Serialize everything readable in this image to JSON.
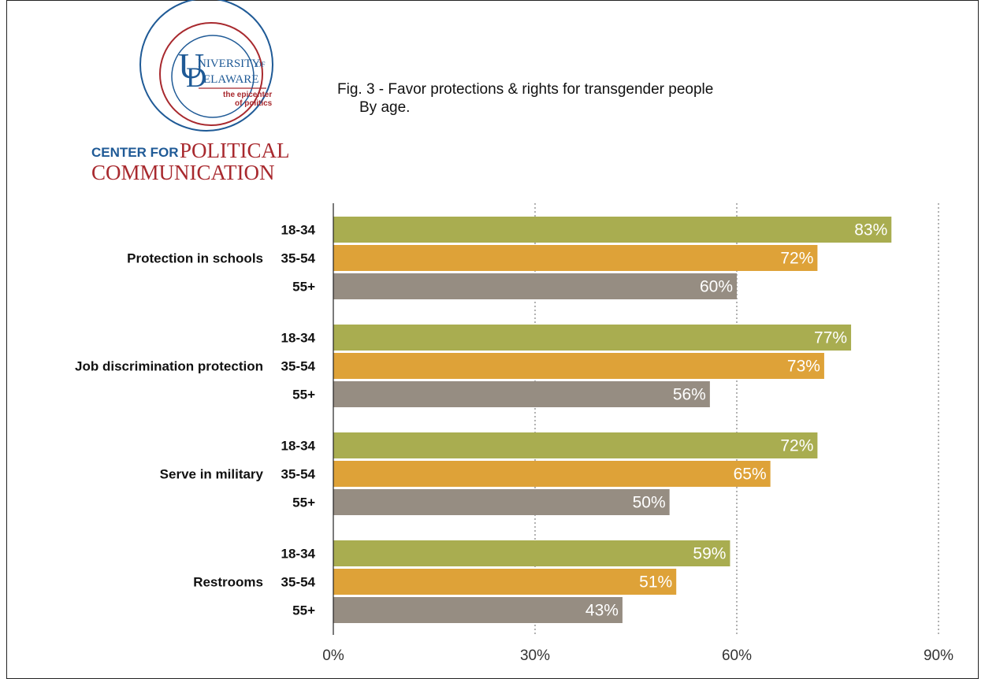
{
  "logo": {
    "university_line1": "NIVERSITY",
    "university_of": "OF",
    "university_line2": "ELAWARE",
    "tagline_line1": "the epicenter",
    "tagline_line2": "of politics",
    "center_for": "CENTER FOR",
    "political": "POLITICAL",
    "communication": "COMMUNICATION",
    "colors": {
      "blue": "#1f5a96",
      "red": "#a8292e"
    }
  },
  "title": {
    "line1": "Fig. 3 - Favor protections & rights for transgender people",
    "line2": "By age."
  },
  "chart_data": {
    "type": "bar",
    "orientation": "horizontal",
    "title": "Fig. 3 - Favor protections & rights for transgender people By age.",
    "xlim": [
      0,
      90
    ],
    "x_ticks": [
      "0%",
      "30%",
      "60%",
      "90%"
    ],
    "x_tick_values": [
      0,
      30,
      60,
      90
    ],
    "grid": "vertical dotted",
    "age_groups": [
      "18-34",
      "35-54",
      "55+"
    ],
    "series_colors": {
      "18-34": "#a9ad50",
      "35-54": "#dea238",
      "55+": "#968d82"
    },
    "groups": [
      {
        "category": "Protection in schools",
        "values": [
          83,
          72,
          60
        ],
        "labels": [
          "83%",
          "72%",
          "60%"
        ]
      },
      {
        "category": "Job discrimination protection",
        "values": [
          77,
          73,
          56
        ],
        "labels": [
          "77%",
          "73%",
          "56%"
        ]
      },
      {
        "category": "Serve in military",
        "values": [
          72,
          65,
          50
        ],
        "labels": [
          "72%",
          "65%",
          "50%"
        ]
      },
      {
        "category": "Restrooms",
        "values": [
          59,
          51,
          43
        ],
        "labels": [
          "59%",
          "51%",
          "43%"
        ]
      }
    ]
  }
}
